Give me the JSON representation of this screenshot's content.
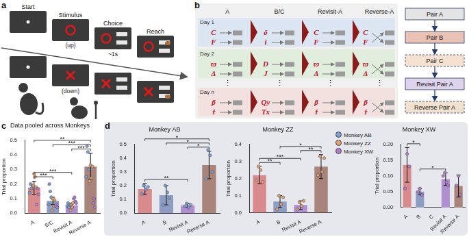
{
  "panel_labels": [
    "a",
    "b",
    "c",
    "d"
  ],
  "task": {
    "steps": [
      "Start",
      "Stimulus",
      "Choice",
      "Reach"
    ],
    "notes": [
      "(up)",
      "(down)"
    ],
    "delay": "~1s"
  },
  "design": {
    "columns": [
      "A",
      "B/C",
      "Revisit-A",
      "Reverse-A"
    ],
    "days": [
      {
        "label": "Day 1",
        "pairs": [
          [
            "C",
            "F"
          ],
          [
            "ǒ",
            "î"
          ],
          [
            "C",
            "F"
          ],
          [
            "C",
            "F"
          ]
        ]
      },
      {
        "label": "Day 2",
        "pairs": [
          [
            "ϖ",
            "Δ"
          ],
          [
            "D",
            "J"
          ],
          [
            "ϖ",
            "Δ"
          ],
          [
            "ϖ",
            "Δ"
          ]
        ]
      },
      {
        "label": "Day n",
        "pairs": [
          [
            "β",
            "ϯ"
          ],
          [
            "Qy",
            "Tx"
          ],
          [
            "β",
            "ϯ"
          ],
          [
            "β",
            "ϯ"
          ]
        ]
      }
    ],
    "ellipsis": "⋮",
    "flow": [
      "Pair A",
      "Pair B",
      "Pair C",
      "Revisit Pair A",
      "Reverse Pair A"
    ]
  },
  "monkey_legend": [
    {
      "name": "Monkey AB",
      "color": "#7d9fd6"
    },
    {
      "name": "Monkey ZZ",
      "color": "#e0a070"
    },
    {
      "name": "Monkey XW",
      "color": "#b27fd0"
    }
  ],
  "chart_data": [
    {
      "type": "bar",
      "title": "Data pooled across Monkeys",
      "y_label": "Trial proportion",
      "categories": [
        "A",
        "B/C",
        "Revisit A",
        "Reverse A"
      ],
      "values": [
        0.175,
        0.085,
        0.055,
        0.32
      ],
      "errors": [
        0.045,
        0.025,
        0.015,
        0.09
      ],
      "colors": [
        "#d98a8c",
        "#8e9dc1",
        "#b08fd0",
        "#a8847a"
      ],
      "ylim": [
        0,
        0.5
      ],
      "yticks": [
        {
          "value": 0,
          "label": "0.0"
        },
        0.1,
        0.2,
        0.3,
        0.4,
        0.5
      ],
      "grid": false,
      "points": [
        {
          "name": "Monkey AB",
          "color": "#7d9fd6",
          "values": [
            [
              0.14,
              0.2,
              0.17,
              0.19
            ],
            [
              0.06,
              0.2,
              0.15,
              0.11
            ],
            [
              0.05,
              0.07,
              0.04,
              0.06
            ],
            [
              0.25,
              0.46,
              0.42,
              0.3
            ]
          ]
        },
        {
          "name": "Monkey ZZ",
          "color": "#e0a070",
          "values": [
            [
              0.19,
              0.27,
              0.25,
              0.18
            ],
            [
              0.02,
              0.1,
              0.05,
              0.09
            ],
            [
              0.02,
              0.06,
              0.04,
              0.07
            ],
            [
              0.22,
              0.33,
              0.24,
              0.32
            ]
          ]
        },
        {
          "name": "Monkey XW",
          "color": "#b27fd0",
          "values": [
            [
              0.06,
              0.17,
              0.13
            ],
            [
              0.05,
              0.06,
              0.04
            ],
            [
              0.1,
              0.11,
              0.08,
              0.07
            ],
            [
              0.07,
              0.1,
              0.04
            ]
          ]
        }
      ],
      "significance": [
        {
          "pair": [
            "A",
            "B/C"
          ],
          "label": "***"
        },
        {
          "pair": [
            "A",
            "Revisit A"
          ],
          "label": "***"
        },
        {
          "pair": [
            "Revisit A",
            "Reverse A"
          ],
          "label": "***"
        },
        {
          "pair": [
            "B/C",
            "Reverse A"
          ],
          "label": "***"
        },
        {
          "pair": [
            "A",
            "Reverse A"
          ],
          "label": "**"
        }
      ]
    },
    {
      "type": "bar",
      "title": "Monkey AB",
      "y_label": "Trial proportion",
      "categories": [
        "A",
        "B",
        "Revisit A",
        "Reverse A"
      ],
      "values": [
        0.175,
        0.13,
        0.055,
        0.35
      ],
      "errors": [
        0.04,
        0.07,
        0.015,
        0.1
      ],
      "colors": [
        "#d98a8c",
        "#8e9dc1",
        "#b08fd0",
        "#a8847a"
      ],
      "ylim": [
        0,
        0.5
      ],
      "yticks": [
        {
          "value": 0,
          "label": "0.0"
        },
        0.1,
        0.2,
        0.3,
        0.4,
        0.5
      ],
      "grid": false,
      "points": [
        {
          "name": "Monkey AB",
          "color": "#7d9fd6",
          "values": [
            [
              0.14,
              0.2,
              0.17,
              0.19
            ],
            [
              0.06,
              0.2,
              0.15,
              0.11
            ],
            [
              0.05,
              0.07,
              0.04,
              0.06
            ],
            [
              0.25,
              0.46,
              0.42,
              0.3
            ]
          ]
        }
      ],
      "significance": [
        {
          "pair": [
            "A",
            "Revisit A"
          ],
          "label": "**"
        },
        {
          "pair": [
            "Revisit A",
            "Reverse A"
          ],
          "label": "*"
        },
        {
          "pair": [
            "B",
            "Reverse A"
          ],
          "label": "*"
        },
        {
          "pair": [
            "A",
            "Reverse A"
          ],
          "label": "*"
        }
      ]
    },
    {
      "type": "bar",
      "title": "Monkey ZZ",
      "y_label": "Trial proportion",
      "categories": [
        "A",
        "B",
        "Revisit A",
        "Reverse A"
      ],
      "values": [
        0.22,
        0.065,
        0.045,
        0.27
      ],
      "errors": [
        0.05,
        0.035,
        0.025,
        0.07
      ],
      "colors": [
        "#d98a8c",
        "#8e9dc1",
        "#b08fd0",
        "#a8847a"
      ],
      "ylim": [
        0,
        0.4
      ],
      "yticks": [
        {
          "value": 0,
          "label": "0.0"
        },
        0.1,
        0.2,
        0.3,
        0.4
      ],
      "grid": false,
      "points": [
        {
          "name": "Monkey ZZ",
          "color": "#e0a070",
          "values": [
            [
              0.19,
              0.27,
              0.25,
              0.18
            ],
            [
              0.02,
              0.1,
              0.05,
              0.09
            ],
            [
              0.02,
              0.06,
              0.04,
              0.07
            ],
            [
              0.22,
              0.33,
              0.24,
              0.32
            ]
          ]
        }
      ],
      "significance": [
        {
          "pair": [
            "A",
            "B"
          ],
          "label": "**"
        },
        {
          "pair": [
            "A",
            "Revisit A"
          ],
          "label": "***"
        },
        {
          "pair": [
            "Revisit A",
            "Reverse A"
          ],
          "label": "**"
        },
        {
          "pair": [
            "B",
            "Reverse A"
          ],
          "label": "*"
        }
      ]
    },
    {
      "type": "bar",
      "title": "Monkey XW",
      "y_label": "Trial proportion",
      "categories": [
        "A",
        "B",
        "C",
        "Revisit A",
        "Reverse A"
      ],
      "values": [
        0.135,
        0.05,
        null,
        0.09,
        0.068
      ],
      "errors": [
        0.055,
        0.01,
        null,
        0.02,
        0.035
      ],
      "colors": [
        "#d98a8c",
        "#8e9dc1",
        "#8e9dc1",
        "#b08fd0",
        "#a8847a"
      ],
      "ylim": [
        0,
        0.2
      ],
      "yticks": [
        {
          "value": 0,
          "label": "0.00"
        },
        0.05,
        {
          "value": 0.1,
          "label": "0.10"
        },
        0.15,
        {
          "value": 0.2,
          "label": "0.20"
        }
      ],
      "grid": false,
      "points": [
        {
          "name": "Monkey XW",
          "color": "#b27fd0",
          "values": [
            [
              0.06,
              0.17,
              0.13
            ],
            [
              0.05,
              0.06,
              0.04
            ],
            [],
            [
              0.1,
              0.11,
              0.08,
              0.07
            ],
            [
              0.07,
              0.1,
              0.04
            ]
          ]
        }
      ],
      "significance": [
        {
          "pair": [
            "A",
            "B"
          ],
          "label": "*"
        },
        {
          "pair": [
            "B",
            "Revisit A"
          ],
          "label": "*"
        }
      ]
    }
  ]
}
